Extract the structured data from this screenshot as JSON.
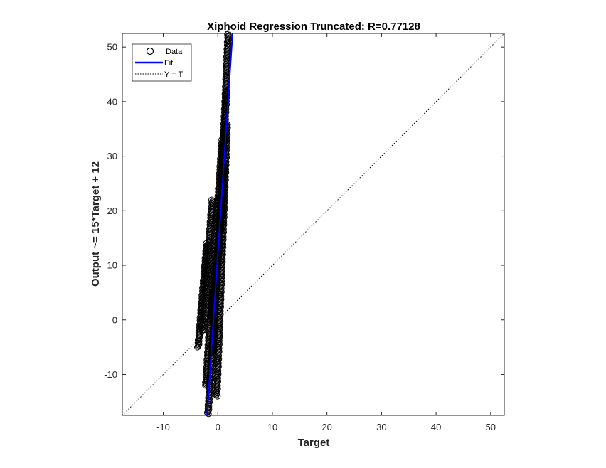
{
  "chart_data": {
    "type": "scatter",
    "title": "Xiphoid Regression Truncated: R=0.77128",
    "xlabel": "Target",
    "ylabel": "Output ~= 15*Target + 12",
    "xlim": [
      -17.5,
      52.5
    ],
    "ylim": [
      -17.5,
      52.5
    ],
    "xticks": [
      -10,
      0,
      10,
      20,
      30,
      40,
      50
    ],
    "yticks": [
      -10,
      0,
      10,
      20,
      30,
      40,
      50
    ],
    "grid": false,
    "legend_position": "top-left",
    "legend": {
      "data_label": "Data",
      "fit_label": "Fit",
      "identity_label": "Y = T"
    },
    "fit": {
      "slope": 15,
      "intercept": 12
    },
    "colors": {
      "data": "#000000",
      "fit": "#0000ff",
      "identity": "#000000"
    },
    "data_segments": [
      {
        "x": [
          -3.6,
          -2.0
        ],
        "y": [
          -5.0,
          14.0
        ]
      },
      {
        "x": [
          -2.9,
          -1.0
        ],
        "y": [
          -2.0,
          22.0
        ]
      },
      {
        "x": [
          -2.2,
          0.8
        ],
        "y": [
          -12.0,
          33.0
        ]
      },
      {
        "x": [
          -1.8,
          1.2
        ],
        "y": [
          -17.2,
          28.0
        ]
      },
      {
        "x": [
          -1.0,
          1.6
        ],
        "y": [
          -6.0,
          42.0
        ]
      },
      {
        "x": [
          -0.2,
          1.7
        ],
        "y": [
          -14.0,
          36.0
        ]
      },
      {
        "x": [
          0.3,
          1.9
        ],
        "y": [
          15.0,
          52.5
        ]
      },
      {
        "x": [
          -1.4,
          0.6
        ],
        "y": [
          0.0,
          18.0
        ]
      }
    ]
  }
}
